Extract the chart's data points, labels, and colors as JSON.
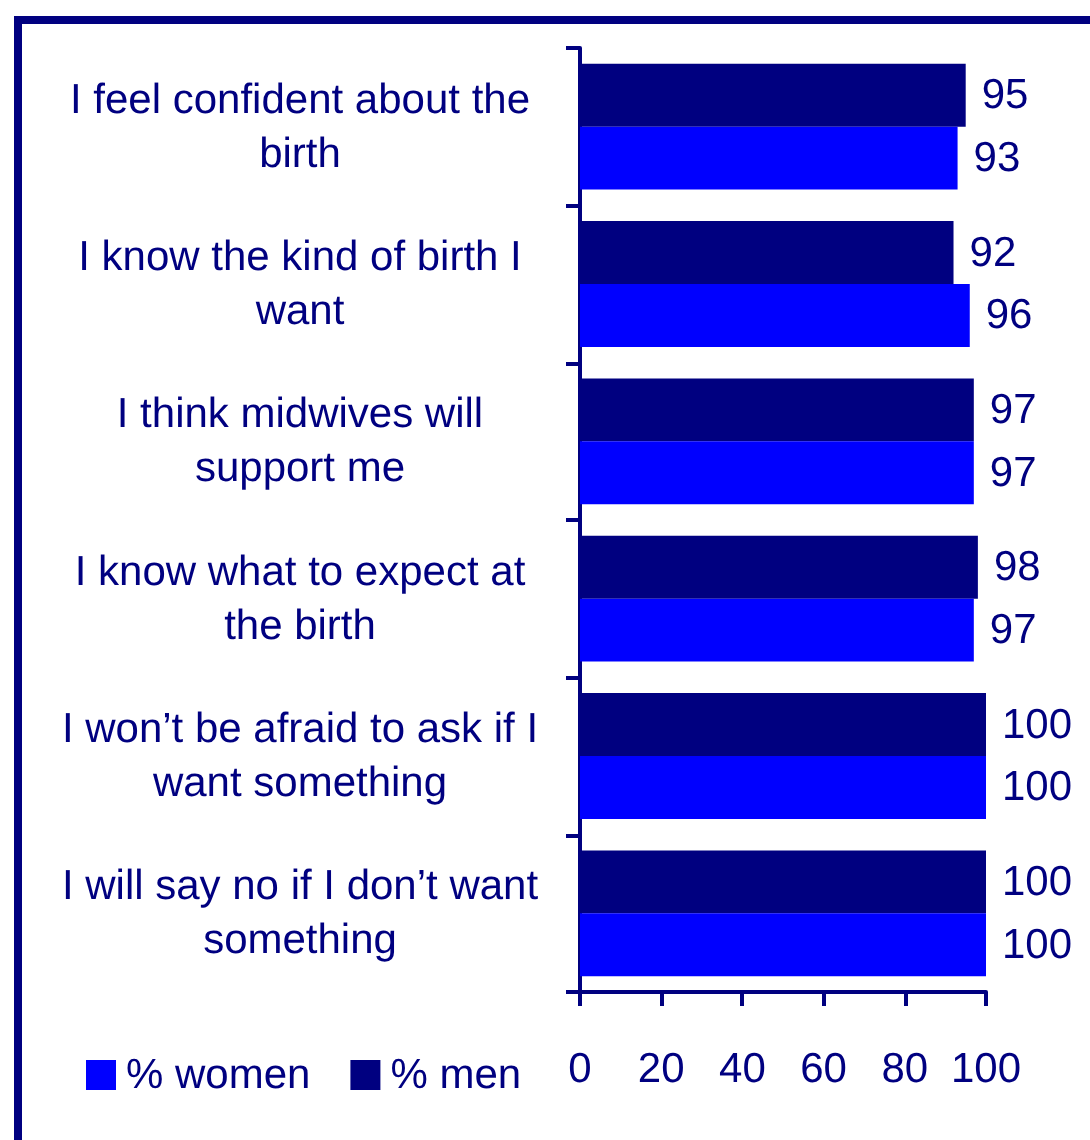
{
  "chart_data": {
    "type": "bar",
    "orientation": "horizontal",
    "categories": [
      "I feel confident about the birth",
      "I know the kind of birth I want",
      "I think midwives will support me",
      "I know what to expect at the birth",
      "I won’t be afraid to ask if I want something",
      "I will say no if I don’t want something"
    ],
    "series": [
      {
        "name": "% women",
        "color": "#0000ff",
        "values": [
          93,
          96,
          97,
          97,
          100,
          100
        ]
      },
      {
        "name": "% men",
        "color": "#000080",
        "values": [
          95,
          92,
          97,
          98,
          100,
          100
        ]
      }
    ],
    "xlim": [
      0,
      100
    ],
    "xticks": [
      0,
      20,
      40,
      60,
      80,
      100
    ],
    "data_labels": true,
    "legend": "bottom left",
    "grid": false
  }
}
